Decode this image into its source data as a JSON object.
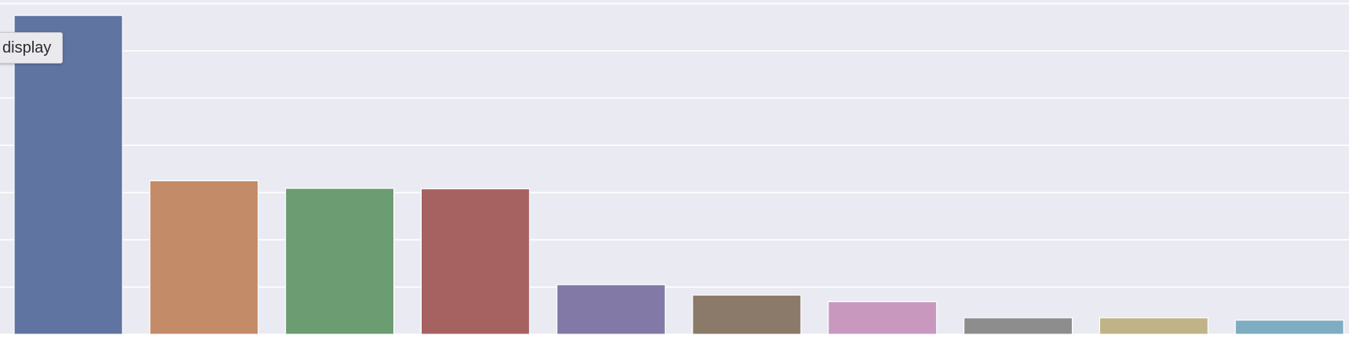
{
  "chart_data": {
    "type": "bar",
    "title": "",
    "xlabel": "",
    "ylabel": "",
    "grid": true,
    "categories": [
      "",
      "",
      "",
      "",
      "",
      "",
      "",
      "",
      "",
      ""
    ],
    "values": [
      6.75,
      3.25,
      3.09,
      3.08,
      1.05,
      0.83,
      0.69,
      0.35,
      0.35,
      0.3
    ],
    "ylim": [
      0,
      7
    ],
    "colors": [
      "#5f74a1",
      "#c38b68",
      "#6c9c72",
      "#a66261",
      "#8379a7",
      "#8b7a69",
      "#c898bf",
      "#8d8d8d",
      "#c0b486",
      "#7eadc2"
    ],
    "gridline_color": "#ffffff",
    "background": "#eaeaf2"
  },
  "tooltip": {
    "text": "display"
  }
}
